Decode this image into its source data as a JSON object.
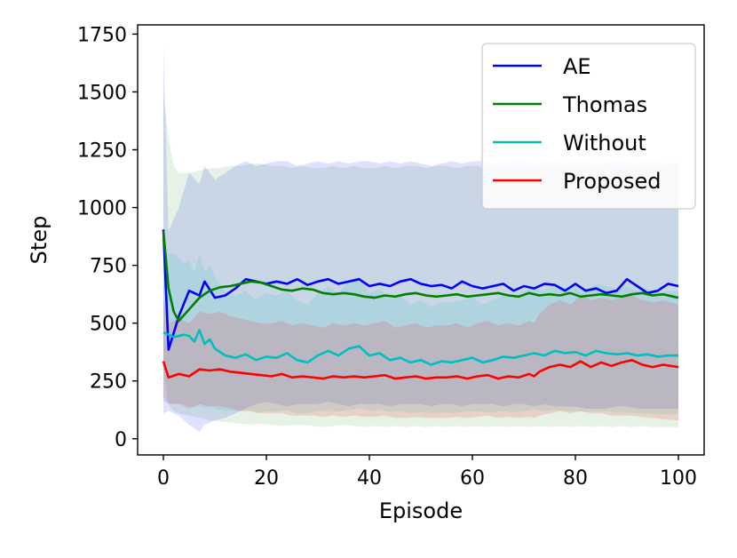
{
  "chart_data": {
    "type": "line",
    "xlabel": "Episode",
    "ylabel": "Step",
    "xlim": [
      -5,
      105
    ],
    "ylim": [
      -70,
      1790
    ],
    "xticks": [
      0,
      20,
      40,
      60,
      80,
      100
    ],
    "yticks": [
      0,
      250,
      500,
      750,
      1000,
      1250,
      1500,
      1750
    ],
    "grid": false,
    "legend_position": "top-right",
    "series": [
      {
        "name": "AE",
        "color": "#0000ff",
        "band_opacity": 0.12,
        "x": [
          0,
          1,
          3,
          5,
          7,
          8,
          10,
          12,
          14,
          16,
          18,
          20,
          22,
          24,
          26,
          28,
          30,
          32,
          34,
          36,
          38,
          40,
          42,
          44,
          46,
          48,
          50,
          52,
          54,
          56,
          58,
          60,
          62,
          64,
          66,
          68,
          70,
          72,
          74,
          76,
          78,
          80,
          82,
          84,
          86,
          88,
          90,
          92,
          94,
          96,
          98,
          100
        ],
        "y": [
          905,
          385,
          530,
          640,
          620,
          680,
          610,
          620,
          650,
          690,
          680,
          670,
          680,
          670,
          690,
          665,
          680,
          690,
          670,
          680,
          690,
          660,
          670,
          660,
          680,
          690,
          670,
          660,
          665,
          650,
          680,
          660,
          650,
          660,
          670,
          640,
          660,
          650,
          670,
          665,
          640,
          670,
          640,
          650,
          630,
          640,
          690,
          660,
          630,
          640,
          670,
          660
        ],
        "upper": [
          1700,
          900,
          1000,
          1150,
          1100,
          1180,
          1120,
          1150,
          1180,
          1200,
          1180,
          1190,
          1200,
          1200,
          1180,
          1190,
          1200,
          1190,
          1200,
          1190,
          1200,
          1200,
          1190,
          1200,
          1190,
          1200,
          1190,
          1180,
          1190,
          1200,
          1190,
          1200,
          1200,
          1190,
          1200,
          1200,
          1200,
          1190,
          1200,
          1200,
          1190,
          1200,
          1200,
          1190,
          1200,
          1200,
          1200,
          1190,
          1200,
          1200,
          1190,
          1200
        ],
        "lower": [
          110,
          120,
          100,
          60,
          30,
          60,
          80,
          90,
          110,
          130,
          150,
          160,
          150,
          140,
          150,
          150,
          150,
          160,
          150,
          140,
          150,
          150,
          150,
          140,
          150,
          150,
          150,
          140,
          150,
          150,
          140,
          150,
          150,
          150,
          140,
          150,
          150,
          140,
          150,
          140,
          140,
          140,
          130,
          130,
          130,
          140,
          140,
          130,
          130,
          130,
          130,
          130
        ]
      },
      {
        "name": "Thomas",
        "color": "#008000",
        "band_opacity": 0.1,
        "x": [
          0,
          1,
          2,
          3,
          5,
          7,
          9,
          11,
          13,
          15,
          17,
          19,
          21,
          23,
          25,
          27,
          29,
          31,
          33,
          35,
          37,
          39,
          41,
          43,
          45,
          47,
          49,
          51,
          53,
          55,
          57,
          59,
          61,
          63,
          65,
          67,
          69,
          71,
          73,
          75,
          77,
          79,
          81,
          83,
          85,
          87,
          89,
          91,
          93,
          95,
          97,
          100
        ],
        "y": [
          900,
          650,
          550,
          510,
          560,
          610,
          640,
          655,
          660,
          670,
          680,
          675,
          660,
          645,
          640,
          650,
          645,
          630,
          625,
          630,
          625,
          615,
          610,
          620,
          615,
          625,
          630,
          620,
          615,
          620,
          625,
          615,
          620,
          625,
          630,
          620,
          615,
          630,
          620,
          625,
          620,
          630,
          615,
          620,
          625,
          620,
          615,
          625,
          630,
          620,
          625,
          610
        ],
        "upper": [
          1500,
          1300,
          1180,
          1150,
          1150,
          1160,
          1170,
          1170,
          1180,
          1180,
          1190,
          1190,
          1180,
          1180,
          1170,
          1180,
          1170,
          1170,
          1180,
          1170,
          1180,
          1170,
          1170,
          1180,
          1170,
          1180,
          1180,
          1170,
          1180,
          1180,
          1170,
          1180,
          1180,
          1170,
          1180,
          1180,
          1170,
          1180,
          1170,
          1180,
          1180,
          1170,
          1180,
          1170,
          1180,
          1180,
          1170,
          1180,
          1170,
          1180,
          1170,
          1170
        ],
        "lower": [
          300,
          150,
          120,
          110,
          100,
          90,
          80,
          75,
          70,
          65,
          60,
          65,
          60,
          55,
          60,
          60,
          55,
          50,
          55,
          60,
          55,
          50,
          55,
          50,
          55,
          50,
          55,
          50,
          55,
          50,
          55,
          50,
          55,
          50,
          55,
          50,
          55,
          50,
          55,
          50,
          55,
          50,
          55,
          50,
          55,
          50,
          55,
          50,
          55,
          50,
          50,
          50
        ]
      },
      {
        "name": "Without",
        "color": "#00bfbf",
        "band_opacity": 0.12,
        "x": [
          0,
          2,
          4,
          5,
          6,
          7,
          8,
          9,
          10,
          12,
          14,
          16,
          18,
          20,
          22,
          24,
          26,
          28,
          30,
          32,
          34,
          36,
          38,
          40,
          42,
          44,
          46,
          48,
          50,
          52,
          54,
          56,
          58,
          60,
          62,
          64,
          66,
          68,
          70,
          72,
          74,
          76,
          78,
          80,
          82,
          84,
          86,
          88,
          90,
          92,
          94,
          96,
          98,
          100
        ],
        "y": [
          460,
          440,
          450,
          445,
          420,
          470,
          410,
          430,
          390,
          360,
          350,
          365,
          340,
          355,
          350,
          370,
          340,
          330,
          360,
          380,
          360,
          390,
          400,
          360,
          370,
          340,
          350,
          330,
          340,
          320,
          335,
          330,
          340,
          350,
          330,
          340,
          355,
          350,
          360,
          370,
          360,
          380,
          370,
          375,
          360,
          380,
          370,
          365,
          370,
          360,
          365,
          355,
          360,
          360
        ],
        "upper": [
          800,
          800,
          760,
          770,
          720,
          800,
          720,
          750,
          700,
          640,
          620,
          640,
          600,
          630,
          620,
          640,
          600,
          580,
          630,
          660,
          630,
          680,
          700,
          630,
          650,
          600,
          620,
          580,
          600,
          570,
          590,
          590,
          600,
          610,
          580,
          600,
          620,
          610,
          640,
          650,
          640,
          670,
          650,
          660,
          640,
          670,
          660,
          650,
          660,
          640,
          650,
          630,
          640,
          640
        ],
        "lower": [
          160,
          150,
          150,
          140,
          130,
          150,
          130,
          140,
          130,
          120,
          120,
          125,
          110,
          120,
          115,
          125,
          110,
          110,
          120,
          125,
          115,
          125,
          130,
          120,
          125,
          115,
          120,
          110,
          115,
          110,
          115,
          110,
          115,
          120,
          115,
          115,
          120,
          115,
          120,
          125,
          120,
          125,
          120,
          120,
          115,
          120,
          120,
          115,
          115,
          110,
          110,
          105,
          105,
          105
        ]
      },
      {
        "name": "Proposed",
        "color": "#ff0000",
        "band_opacity": 0.13,
        "x": [
          0,
          1,
          3,
          5,
          7,
          9,
          11,
          13,
          15,
          17,
          19,
          21,
          23,
          25,
          27,
          29,
          31,
          33,
          35,
          37,
          39,
          41,
          43,
          45,
          47,
          49,
          51,
          53,
          55,
          57,
          59,
          61,
          63,
          65,
          67,
          69,
          71,
          72,
          73,
          75,
          77,
          79,
          81,
          83,
          85,
          87,
          89,
          91,
          93,
          95,
          97,
          100
        ],
        "y": [
          335,
          265,
          280,
          270,
          300,
          295,
          300,
          290,
          285,
          280,
          275,
          270,
          280,
          265,
          270,
          265,
          260,
          270,
          265,
          270,
          265,
          270,
          275,
          260,
          265,
          270,
          260,
          265,
          265,
          270,
          260,
          270,
          275,
          260,
          270,
          265,
          280,
          270,
          290,
          310,
          320,
          310,
          335,
          310,
          330,
          315,
          330,
          340,
          320,
          310,
          320,
          310
        ],
        "upper": [
          600,
          500,
          520,
          500,
          550,
          540,
          550,
          530,
          520,
          510,
          500,
          500,
          510,
          490,
          500,
          490,
          480,
          500,
          490,
          500,
          490,
          500,
          510,
          480,
          490,
          500,
          480,
          490,
          490,
          500,
          480,
          500,
          510,
          490,
          500,
          490,
          510,
          500,
          540,
          580,
          600,
          580,
          620,
          600,
          610,
          600,
          610,
          620,
          600,
          590,
          600,
          580
        ],
        "lower": [
          180,
          150,
          150,
          130,
          150,
          140,
          140,
          130,
          120,
          120,
          110,
          110,
          110,
          100,
          100,
          100,
          95,
          100,
          95,
          100,
          95,
          95,
          100,
          90,
          90,
          95,
          90,
          90,
          90,
          95,
          90,
          95,
          100,
          90,
          95,
          90,
          95,
          90,
          100,
          110,
          120,
          110,
          120,
          110,
          110,
          100,
          100,
          100,
          95,
          90,
          85,
          80
        ]
      }
    ]
  }
}
